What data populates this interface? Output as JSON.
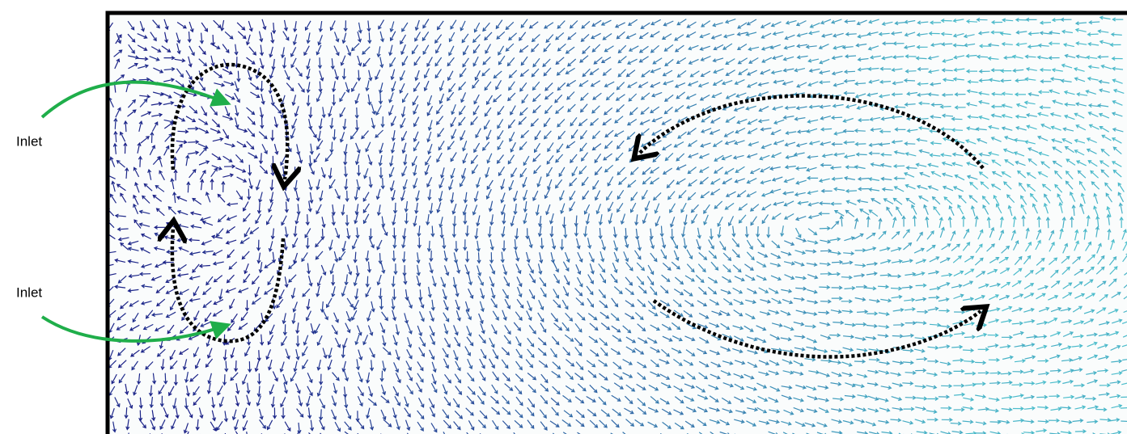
{
  "labels": [
    "Inlet",
    "Inlet"
  ]
}
